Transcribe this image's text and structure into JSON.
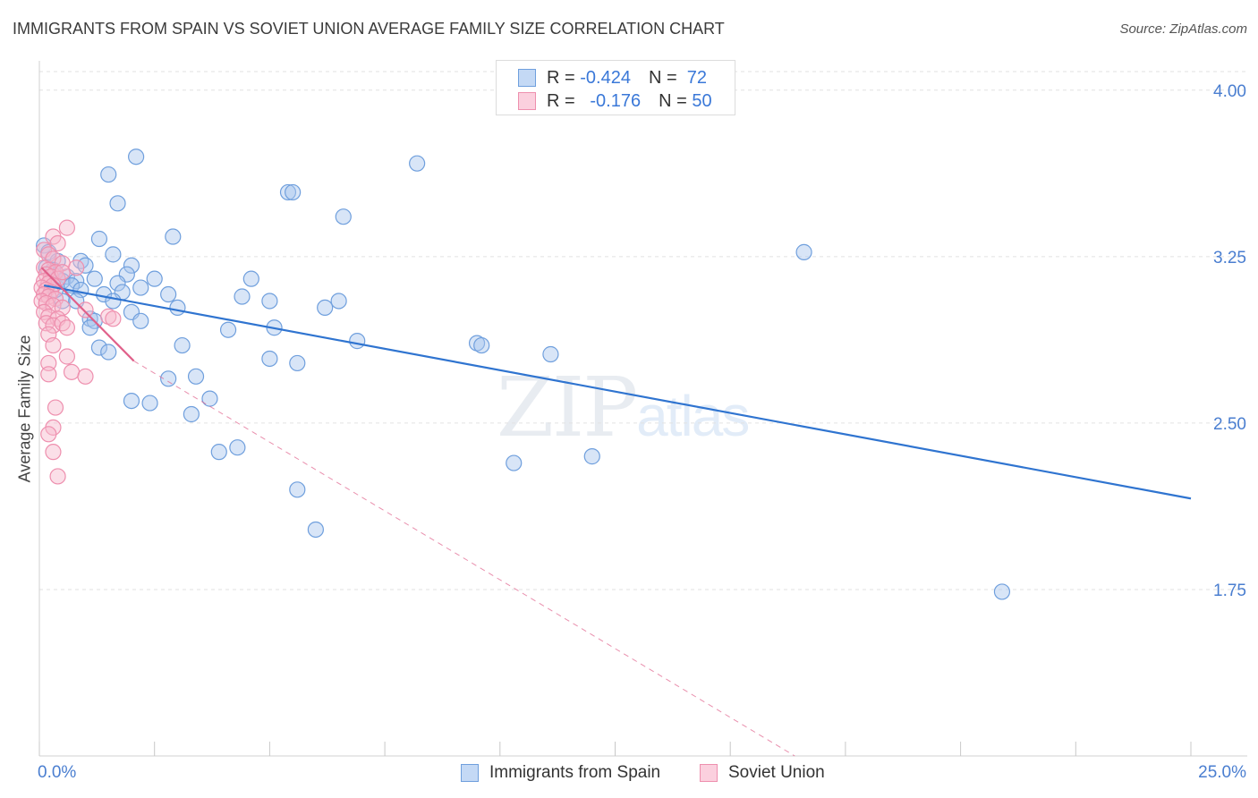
{
  "header": {
    "title": "IMMIGRANTS FROM SPAIN VS SOVIET UNION AVERAGE FAMILY SIZE CORRELATION CHART",
    "source": "Source: ZipAtlas.com"
  },
  "watermark": {
    "zip": "ZIP",
    "atlas": "atlas"
  },
  "legend": {
    "rows": [
      {
        "r_label": "R =",
        "r_value": "-0.424",
        "n_label": "N =",
        "n_value": "72"
      },
      {
        "r_label": "R =",
        "r_value": "-0.176",
        "n_label": "N =",
        "n_value": "50"
      }
    ]
  },
  "bottom_legend": [
    "Immigrants from Spain",
    "Soviet Union"
  ],
  "colors": {
    "blue_fill": "#a9c6ee",
    "blue_stroke": "#6f9fdd",
    "blue_line": "#2f74d0",
    "pink_fill": "#f7b7cb",
    "pink_stroke": "#ee8fae",
    "pink_line": "#e0608a",
    "grid": "#e2e2e2",
    "axis_text": "#4a7ed0"
  },
  "chart_data": {
    "type": "scatter",
    "title": "IMMIGRANTS FROM SPAIN VS SOVIET UNION AVERAGE FAMILY SIZE CORRELATION CHART",
    "xlabel": "",
    "ylabel": "Average Family Size",
    "xlim": [
      0,
      25
    ],
    "ylim": [
      1.0,
      4.1
    ],
    "x_tick_labels": [
      {
        "value": 0,
        "label": "0.0%"
      },
      {
        "value": 25,
        "label": "25.0%"
      }
    ],
    "y_ticks": [
      1.75,
      2.5,
      3.25,
      4.0
    ],
    "y_tick_labels": [
      "1.75",
      "2.50",
      "3.25",
      "4.00"
    ],
    "series": [
      {
        "name": "Immigrants from Spain",
        "color": "blue",
        "points": [
          [
            2.1,
            3.7
          ],
          [
            1.5,
            3.62
          ],
          [
            8.2,
            3.67
          ],
          [
            1.7,
            3.49
          ],
          [
            5.4,
            3.54
          ],
          [
            5.5,
            3.54
          ],
          [
            6.6,
            3.43
          ],
          [
            1.3,
            3.33
          ],
          [
            2.9,
            3.34
          ],
          [
            0.1,
            3.3
          ],
          [
            0.2,
            3.27
          ],
          [
            0.4,
            3.23
          ],
          [
            0.9,
            3.23
          ],
          [
            1.6,
            3.26
          ],
          [
            1.0,
            3.21
          ],
          [
            2.0,
            3.21
          ],
          [
            0.3,
            3.19
          ],
          [
            0.6,
            3.16
          ],
          [
            0.4,
            3.15
          ],
          [
            1.9,
            3.17
          ],
          [
            2.5,
            3.15
          ],
          [
            4.6,
            3.15
          ],
          [
            0.5,
            3.14
          ],
          [
            0.8,
            3.14
          ],
          [
            1.7,
            3.13
          ],
          [
            0.7,
            3.12
          ],
          [
            2.2,
            3.11
          ],
          [
            0.9,
            3.1
          ],
          [
            1.4,
            3.08
          ],
          [
            1.8,
            3.09
          ],
          [
            2.8,
            3.08
          ],
          [
            4.4,
            3.07
          ],
          [
            5.0,
            3.05
          ],
          [
            6.5,
            3.05
          ],
          [
            0.5,
            3.05
          ],
          [
            0.8,
            3.05
          ],
          [
            1.6,
            3.05
          ],
          [
            3.0,
            3.02
          ],
          [
            6.2,
            3.02
          ],
          [
            2.0,
            3.0
          ],
          [
            2.2,
            2.96
          ],
          [
            1.1,
            2.97
          ],
          [
            1.2,
            2.96
          ],
          [
            1.1,
            2.93
          ],
          [
            4.1,
            2.92
          ],
          [
            5.1,
            2.93
          ],
          [
            6.9,
            2.87
          ],
          [
            9.5,
            2.86
          ],
          [
            9.6,
            2.85
          ],
          [
            1.3,
            2.84
          ],
          [
            1.5,
            2.82
          ],
          [
            3.1,
            2.85
          ],
          [
            11.1,
            2.81
          ],
          [
            5.0,
            2.79
          ],
          [
            5.6,
            2.77
          ],
          [
            2.8,
            2.7
          ],
          [
            3.4,
            2.71
          ],
          [
            2.0,
            2.6
          ],
          [
            2.4,
            2.59
          ],
          [
            3.7,
            2.61
          ],
          [
            3.3,
            2.54
          ],
          [
            3.9,
            2.37
          ],
          [
            4.3,
            2.39
          ],
          [
            10.3,
            2.32
          ],
          [
            12.0,
            2.35
          ],
          [
            5.6,
            2.2
          ],
          [
            6.0,
            2.02
          ],
          [
            16.6,
            3.27
          ],
          [
            20.9,
            1.74
          ],
          [
            0.15,
            3.2
          ],
          [
            0.35,
            3.1
          ],
          [
            1.2,
            3.15
          ]
        ]
      },
      {
        "name": "Soviet Union",
        "color": "pink",
        "points": [
          [
            0.6,
            3.38
          ],
          [
            0.3,
            3.34
          ],
          [
            0.4,
            3.31
          ],
          [
            0.1,
            3.28
          ],
          [
            0.2,
            3.26
          ],
          [
            0.3,
            3.24
          ],
          [
            0.5,
            3.22
          ],
          [
            0.1,
            3.2
          ],
          [
            0.2,
            3.19
          ],
          [
            0.35,
            3.18
          ],
          [
            0.15,
            3.17
          ],
          [
            0.25,
            3.16
          ],
          [
            0.4,
            3.15
          ],
          [
            0.1,
            3.14
          ],
          [
            0.2,
            3.13
          ],
          [
            0.3,
            3.12
          ],
          [
            0.05,
            3.11
          ],
          [
            0.15,
            3.1
          ],
          [
            0.25,
            3.09
          ],
          [
            0.1,
            3.08
          ],
          [
            0.2,
            3.07
          ],
          [
            0.35,
            3.06
          ],
          [
            0.05,
            3.05
          ],
          [
            0.15,
            3.04
          ],
          [
            0.3,
            3.03
          ],
          [
            0.5,
            3.02
          ],
          [
            0.1,
            3.0
          ],
          [
            1.0,
            3.01
          ],
          [
            0.2,
            2.98
          ],
          [
            0.4,
            2.97
          ],
          [
            1.5,
            2.98
          ],
          [
            1.6,
            2.97
          ],
          [
            0.15,
            2.95
          ],
          [
            0.3,
            2.94
          ],
          [
            0.5,
            2.95
          ],
          [
            0.6,
            2.93
          ],
          [
            0.2,
            2.9
          ],
          [
            0.3,
            2.85
          ],
          [
            0.6,
            2.8
          ],
          [
            0.2,
            2.77
          ],
          [
            0.7,
            2.73
          ],
          [
            0.2,
            2.72
          ],
          [
            1.0,
            2.71
          ],
          [
            0.35,
            2.57
          ],
          [
            0.3,
            2.48
          ],
          [
            0.2,
            2.45
          ],
          [
            0.3,
            2.37
          ],
          [
            0.4,
            2.26
          ],
          [
            0.8,
            3.2
          ],
          [
            0.5,
            3.18
          ]
        ]
      }
    ],
    "trendlines": [
      {
        "series": "Immigrants from Spain",
        "x": [
          0.1,
          25.0
        ],
        "y": [
          3.12,
          2.16
        ],
        "style": "solid"
      },
      {
        "series": "Soviet Union",
        "x": [
          0.05,
          2.05
        ],
        "y": [
          3.2,
          2.78
        ],
        "style": "solid"
      },
      {
        "series": "Soviet Union",
        "x": [
          2.05,
          16.4
        ],
        "y": [
          2.78,
          1.0
        ],
        "style": "dashed"
      }
    ]
  }
}
